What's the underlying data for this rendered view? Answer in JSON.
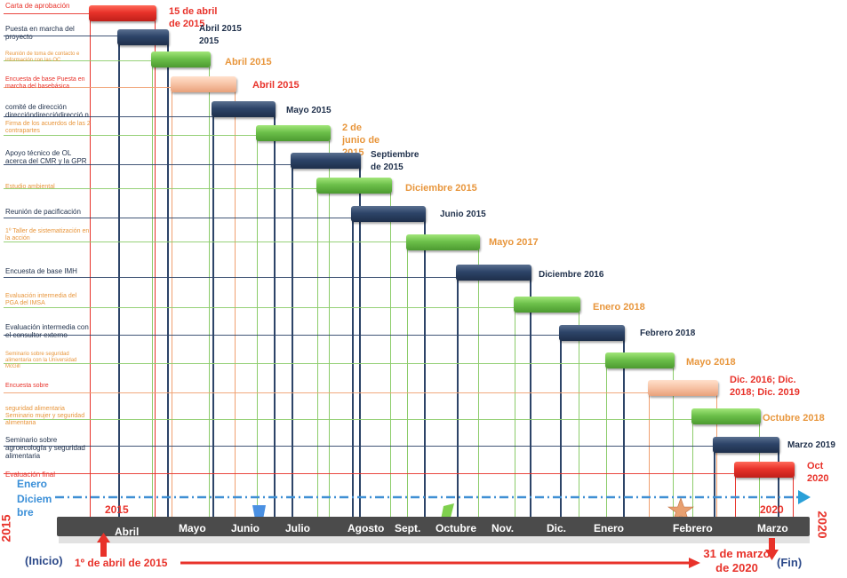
{
  "colors": {
    "red": "#e8322a",
    "navy": "#2d4468",
    "green": "#6cc04a",
    "orange": "#e8963c",
    "peach": "#f7c2a4",
    "blue": "#3f6fb7",
    "axis": "#4b4b4b"
  },
  "tasks": [
    {
      "label": "Carta de aprobación",
      "date": "15 de abril de 2015",
      "color": "red"
    },
    {
      "label": "Puesta en marcha del proyecto",
      "date": "Abril 2015 2015",
      "color": "navy"
    },
    {
      "label": "Reunión de toma de contacto e información con las OC",
      "date": "Abril 2015",
      "color": "green"
    },
    {
      "label": "Encuesta de base Puesta en marcha del basebásica",
      "date": "Abril 2015",
      "color": "peach"
    },
    {
      "label": "comité de dirección direccióndirecciódirecció n",
      "date": "Mayo 2015",
      "color": "navy"
    },
    {
      "label": "Firma de los acuerdos de las 2 contrapartes",
      "date": "2 de junio de 2015",
      "color": "green"
    },
    {
      "label": "Apoyo técnico de OL acerca del CMR y la GPR",
      "date": "Septiembre de 2015",
      "color": "navy"
    },
    {
      "label": "Estudio ambiental",
      "date": "Diciembre 2015",
      "color": "green"
    },
    {
      "label": "Reunión de pacificación",
      "date": "Junio 2015",
      "color": "navy"
    },
    {
      "label": "1º Taller de sistematización en la acción",
      "date": "Mayo 2017",
      "color": "green"
    },
    {
      "label": "Encuesta de base IMH",
      "date": "Diciembre 2016",
      "color": "navy"
    },
    {
      "label": "Evaluación intermedia del PGA del IMSA",
      "date": "Enero 2018",
      "color": "green"
    },
    {
      "label": "Evaluación intermedia con el consultor externo",
      "date": "Febrero 2018",
      "color": "navy"
    },
    {
      "label": "Seminario sobre seguridad alimentaria con la Universidad McGill",
      "date": "Mayo 2018",
      "color": "green"
    },
    {
      "label": "Encuesta sobre",
      "date": "Dic. 2016; Dic. 2018; Dic. 2019",
      "color": "peach"
    },
    {
      "label": "seguridad alimentaria Seminario mujer y seguridad alimentaria",
      "date": "Octubre 2018",
      "color": "green"
    },
    {
      "label": "Seminario sobre agroecología y seguridad alimentaria",
      "date": "Marzo 2019",
      "color": "navy"
    },
    {
      "label": "Evaluación final",
      "date": "Oct 2020",
      "color": "red"
    }
  ],
  "legend": {
    "enero": "Enero",
    "diciembre": "Diciem bre"
  },
  "axis": {
    "start_year": "2015",
    "end_year": "2020",
    "inner_start_year": "2015",
    "inner_end_year": "2020",
    "months": [
      "Abril",
      "Mayo",
      "Junio",
      "Julio",
      "Agosto",
      "Sept.",
      "Octubre",
      "Nov.",
      "Dic.",
      "Enero",
      "Febrero",
      "Marzo"
    ]
  },
  "footer": {
    "inicio": "(Inicio)",
    "start_date": "1º de abril de 2015",
    "end_date": "31 de marzo de 2020",
    "fin": "(Fin)"
  }
}
